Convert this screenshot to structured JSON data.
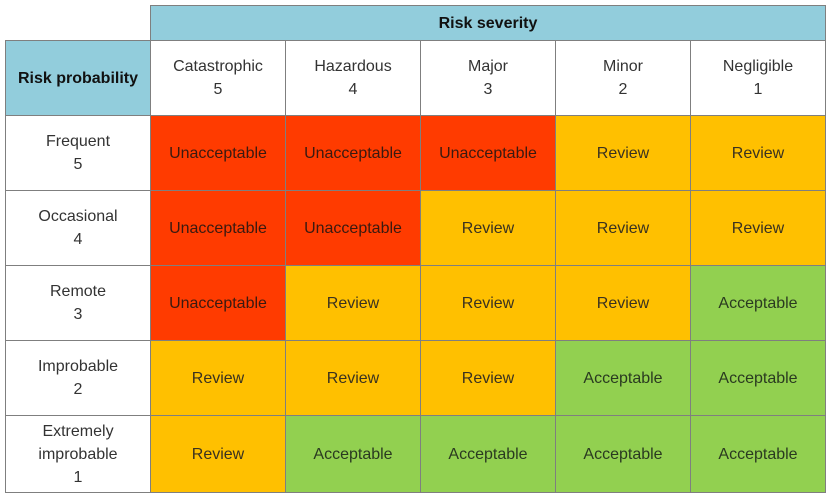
{
  "header": {
    "severity_title": "Risk severity",
    "probability_title": "Risk probability"
  },
  "severities": [
    {
      "name": "Catastrophic",
      "score": "5"
    },
    {
      "name": "Hazardous",
      "score": "4"
    },
    {
      "name": "Major",
      "score": "3"
    },
    {
      "name": "Minor",
      "score": "2"
    },
    {
      "name": "Negligible",
      "score": "1"
    }
  ],
  "probabilities": [
    {
      "lines": [
        "Frequent",
        "5"
      ]
    },
    {
      "lines": [
        "Occasional",
        "4"
      ]
    },
    {
      "lines": [
        "Remote",
        "3"
      ]
    },
    {
      "lines": [
        "Improbable",
        "2"
      ]
    },
    {
      "lines": [
        "Extremely",
        "improbable",
        "1"
      ]
    }
  ],
  "matrix": [
    [
      "Unacceptable",
      "Unacceptable",
      "Unacceptable",
      "Review",
      "Review"
    ],
    [
      "Unacceptable",
      "Unacceptable",
      "Review",
      "Review",
      "Review"
    ],
    [
      "Unacceptable",
      "Review",
      "Review",
      "Review",
      "Acceptable"
    ],
    [
      "Review",
      "Review",
      "Review",
      "Acceptable",
      "Acceptable"
    ],
    [
      "Review",
      "Acceptable",
      "Acceptable",
      "Acceptable",
      "Acceptable"
    ]
  ],
  "colors": {
    "header_blue": "#92cddc",
    "unacceptable": "#ff3b00",
    "review": "#ffc000",
    "acceptable": "#92d050"
  }
}
